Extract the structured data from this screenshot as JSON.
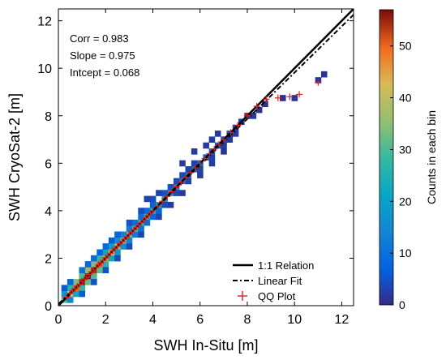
{
  "chart_data": {
    "type": "heatmap",
    "xlabel": "SWH In-Situ [m]",
    "ylabel": "SWH CryoSat-2 [m]",
    "xlim": [
      0,
      12.5
    ],
    "ylim": [
      0,
      12.5
    ],
    "xticks": [
      "0",
      "2",
      "4",
      "6",
      "8",
      "10",
      "12"
    ],
    "yticks": [
      "0",
      "2",
      "4",
      "6",
      "8",
      "10",
      "12"
    ],
    "grid": false,
    "stats": {
      "corr": "Corr = 0.983",
      "slope": "Slope = 0.975",
      "intercept": "Intcept = 0.068"
    },
    "regression": {
      "slope": 0.975,
      "intercept": 0.068
    },
    "legend": {
      "placement": "bottom-right",
      "entries": [
        "1:1 Relation",
        "Linear Fit",
        "QQ Plot"
      ]
    },
    "colorbar": {
      "label": "Counts in each bin",
      "min": 0,
      "max": 57,
      "ticks": [
        "0",
        "10",
        "20",
        "30",
        "40",
        "50"
      ],
      "colormap": "jet"
    },
    "colors": {
      "one_to_one": "#000000",
      "linear_fit": "#000000",
      "qq_marker": "#e0201b"
    },
    "qq_points": [
      [
        0.35,
        0.36
      ],
      [
        0.5,
        0.52
      ],
      [
        0.6,
        0.62
      ],
      [
        0.7,
        0.72
      ],
      [
        0.8,
        0.82
      ],
      [
        0.9,
        0.9
      ],
      [
        1.0,
        1.02
      ],
      [
        1.1,
        1.12
      ],
      [
        1.2,
        1.2
      ],
      [
        1.3,
        1.32
      ],
      [
        1.4,
        1.42
      ],
      [
        1.5,
        1.5
      ],
      [
        1.6,
        1.62
      ],
      [
        1.7,
        1.72
      ],
      [
        1.8,
        1.8
      ],
      [
        1.9,
        1.9
      ],
      [
        2.0,
        2.02
      ],
      [
        2.1,
        2.1
      ],
      [
        2.2,
        2.2
      ],
      [
        2.3,
        2.32
      ],
      [
        2.4,
        2.4
      ],
      [
        2.5,
        2.5
      ],
      [
        2.6,
        2.62
      ],
      [
        2.7,
        2.7
      ],
      [
        2.8,
        2.8
      ],
      [
        2.9,
        2.9
      ],
      [
        3.0,
        3.0
      ],
      [
        3.1,
        3.1
      ],
      [
        3.2,
        3.2
      ],
      [
        3.3,
        3.3
      ],
      [
        3.4,
        3.4
      ],
      [
        3.5,
        3.5
      ],
      [
        3.6,
        3.6
      ],
      [
        3.7,
        3.7
      ],
      [
        3.8,
        3.8
      ],
      [
        3.9,
        3.9
      ],
      [
        4.0,
        4.0
      ],
      [
        4.2,
        4.2
      ],
      [
        4.4,
        4.4
      ],
      [
        4.6,
        4.6
      ],
      [
        4.8,
        4.8
      ],
      [
        5.0,
        5.0
      ],
      [
        5.2,
        5.2
      ],
      [
        5.4,
        5.4
      ],
      [
        5.6,
        5.6
      ],
      [
        5.8,
        5.8
      ],
      [
        6.0,
        6.0
      ],
      [
        6.2,
        6.2
      ],
      [
        6.4,
        6.4
      ],
      [
        6.6,
        6.6
      ],
      [
        6.8,
        6.8
      ],
      [
        7.0,
        7.0
      ],
      [
        7.3,
        7.3
      ],
      [
        7.6,
        7.6
      ],
      [
        8.0,
        8.0
      ],
      [
        8.4,
        8.4
      ],
      [
        8.8,
        8.7
      ],
      [
        9.3,
        8.75
      ],
      [
        9.8,
        8.8
      ],
      [
        10.2,
        8.9
      ],
      [
        11.0,
        9.4
      ]
    ],
    "density_bins": [
      [
        0.25,
        0.25,
        30
      ],
      [
        0.25,
        0.5,
        18
      ],
      [
        0.5,
        0.25,
        14
      ],
      [
        0.5,
        0.5,
        42
      ],
      [
        0.5,
        0.75,
        26
      ],
      [
        0.75,
        0.5,
        22
      ],
      [
        0.75,
        0.75,
        50
      ],
      [
        0.75,
        1.0,
        34
      ],
      [
        1.0,
        0.75,
        28
      ],
      [
        1.0,
        1.0,
        55
      ],
      [
        1.0,
        1.25,
        30
      ],
      [
        1.25,
        1.0,
        32
      ],
      [
        1.25,
        1.25,
        56
      ],
      [
        1.25,
        1.5,
        36
      ],
      [
        1.5,
        1.25,
        30
      ],
      [
        1.5,
        1.5,
        54
      ],
      [
        1.5,
        1.75,
        34
      ],
      [
        1.75,
        1.5,
        32
      ],
      [
        1.75,
        1.75,
        50
      ],
      [
        1.75,
        2.0,
        28
      ],
      [
        2.0,
        1.75,
        26
      ],
      [
        2.0,
        2.0,
        46
      ],
      [
        2.0,
        2.25,
        22
      ],
      [
        2.25,
        2.0,
        22
      ],
      [
        2.25,
        2.25,
        42
      ],
      [
        2.25,
        2.5,
        20
      ],
      [
        2.5,
        2.25,
        18
      ],
      [
        2.5,
        2.5,
        38
      ],
      [
        2.5,
        2.75,
        16
      ],
      [
        2.75,
        2.5,
        16
      ],
      [
        2.75,
        2.75,
        34
      ],
      [
        2.75,
        3.0,
        14
      ],
      [
        3.0,
        2.75,
        14
      ],
      [
        3.0,
        3.0,
        32
      ],
      [
        3.0,
        3.25,
        12
      ],
      [
        3.25,
        3.0,
        12
      ],
      [
        3.25,
        3.25,
        30
      ],
      [
        3.25,
        3.5,
        10
      ],
      [
        3.5,
        3.25,
        10
      ],
      [
        3.5,
        3.5,
        28
      ],
      [
        3.5,
        3.75,
        9
      ],
      [
        3.75,
        3.5,
        9
      ],
      [
        3.75,
        3.75,
        26
      ],
      [
        3.75,
        4.0,
        8
      ],
      [
        4.0,
        3.75,
        8
      ],
      [
        4.0,
        4.0,
        24
      ],
      [
        4.0,
        4.25,
        7
      ],
      [
        4.25,
        4.0,
        7
      ],
      [
        4.25,
        4.25,
        22
      ],
      [
        4.5,
        4.5,
        20
      ],
      [
        4.75,
        4.75,
        18
      ],
      [
        5.0,
        5.0,
        16
      ],
      [
        5.25,
        5.25,
        14
      ],
      [
        5.5,
        5.5,
        12
      ],
      [
        5.75,
        5.75,
        10
      ],
      [
        6.0,
        6.0,
        9
      ],
      [
        6.25,
        6.25,
        8
      ],
      [
        6.5,
        6.5,
        7
      ],
      [
        6.75,
        6.75,
        6
      ],
      [
        7.0,
        7.0,
        5
      ],
      [
        7.25,
        7.25,
        4
      ],
      [
        7.5,
        7.5,
        4
      ],
      [
        7.75,
        7.75,
        3
      ],
      [
        8.0,
        8.0,
        3
      ],
      [
        0.5,
        1.0,
        8
      ],
      [
        0.25,
        0.75,
        6
      ],
      [
        1.0,
        1.5,
        10
      ],
      [
        1.25,
        1.75,
        8
      ],
      [
        1.5,
        2.0,
        9
      ],
      [
        1.75,
        2.25,
        7
      ],
      [
        2.0,
        2.5,
        8
      ],
      [
        2.25,
        2.75,
        6
      ],
      [
        2.5,
        3.0,
        7
      ],
      [
        3.0,
        3.5,
        5
      ],
      [
        3.5,
        4.0,
        4
      ],
      [
        4.0,
        4.5,
        4
      ],
      [
        1.0,
        0.5,
        6
      ],
      [
        1.5,
        1.0,
        5
      ],
      [
        2.0,
        1.5,
        5
      ],
      [
        2.5,
        2.0,
        4
      ],
      [
        3.0,
        2.5,
        4
      ],
      [
        3.5,
        3.0,
        3
      ],
      [
        4.5,
        4.75,
        5
      ],
      [
        4.75,
        5.0,
        5
      ],
      [
        5.0,
        5.25,
        4
      ],
      [
        5.25,
        5.5,
        4
      ],
      [
        5.5,
        5.75,
        3
      ],
      [
        5.75,
        6.0,
        3
      ],
      [
        4.5,
        4.25,
        4
      ],
      [
        5.0,
        4.75,
        4
      ],
      [
        5.5,
        5.25,
        3
      ],
      [
        6.0,
        5.75,
        3
      ],
      [
        6.5,
        6.25,
        3
      ],
      [
        7.0,
        6.75,
        2
      ],
      [
        6.25,
        6.75,
        2
      ],
      [
        6.75,
        7.25,
        2
      ],
      [
        7.25,
        7.0,
        2
      ],
      [
        7.5,
        7.25,
        2
      ],
      [
        8.25,
        8.0,
        2
      ],
      [
        8.5,
        8.25,
        1
      ],
      [
        8.75,
        8.5,
        1
      ],
      [
        9.5,
        8.75,
        1
      ],
      [
        10.0,
        8.75,
        1
      ],
      [
        11.0,
        9.5,
        1
      ],
      [
        11.25,
        9.75,
        1
      ],
      [
        5.25,
        6.0,
        2
      ],
      [
        5.75,
        6.5,
        2
      ],
      [
        6.5,
        7.0,
        2
      ],
      [
        3.75,
        4.5,
        3
      ],
      [
        4.25,
        4.75,
        3
      ],
      [
        4.25,
        3.75,
        3
      ],
      [
        4.75,
        4.25,
        2
      ],
      [
        5.25,
        4.75,
        2
      ],
      [
        6.0,
        5.5,
        2
      ],
      [
        7.0,
        6.5,
        1
      ],
      [
        6.5,
        6.0,
        2
      ]
    ]
  }
}
